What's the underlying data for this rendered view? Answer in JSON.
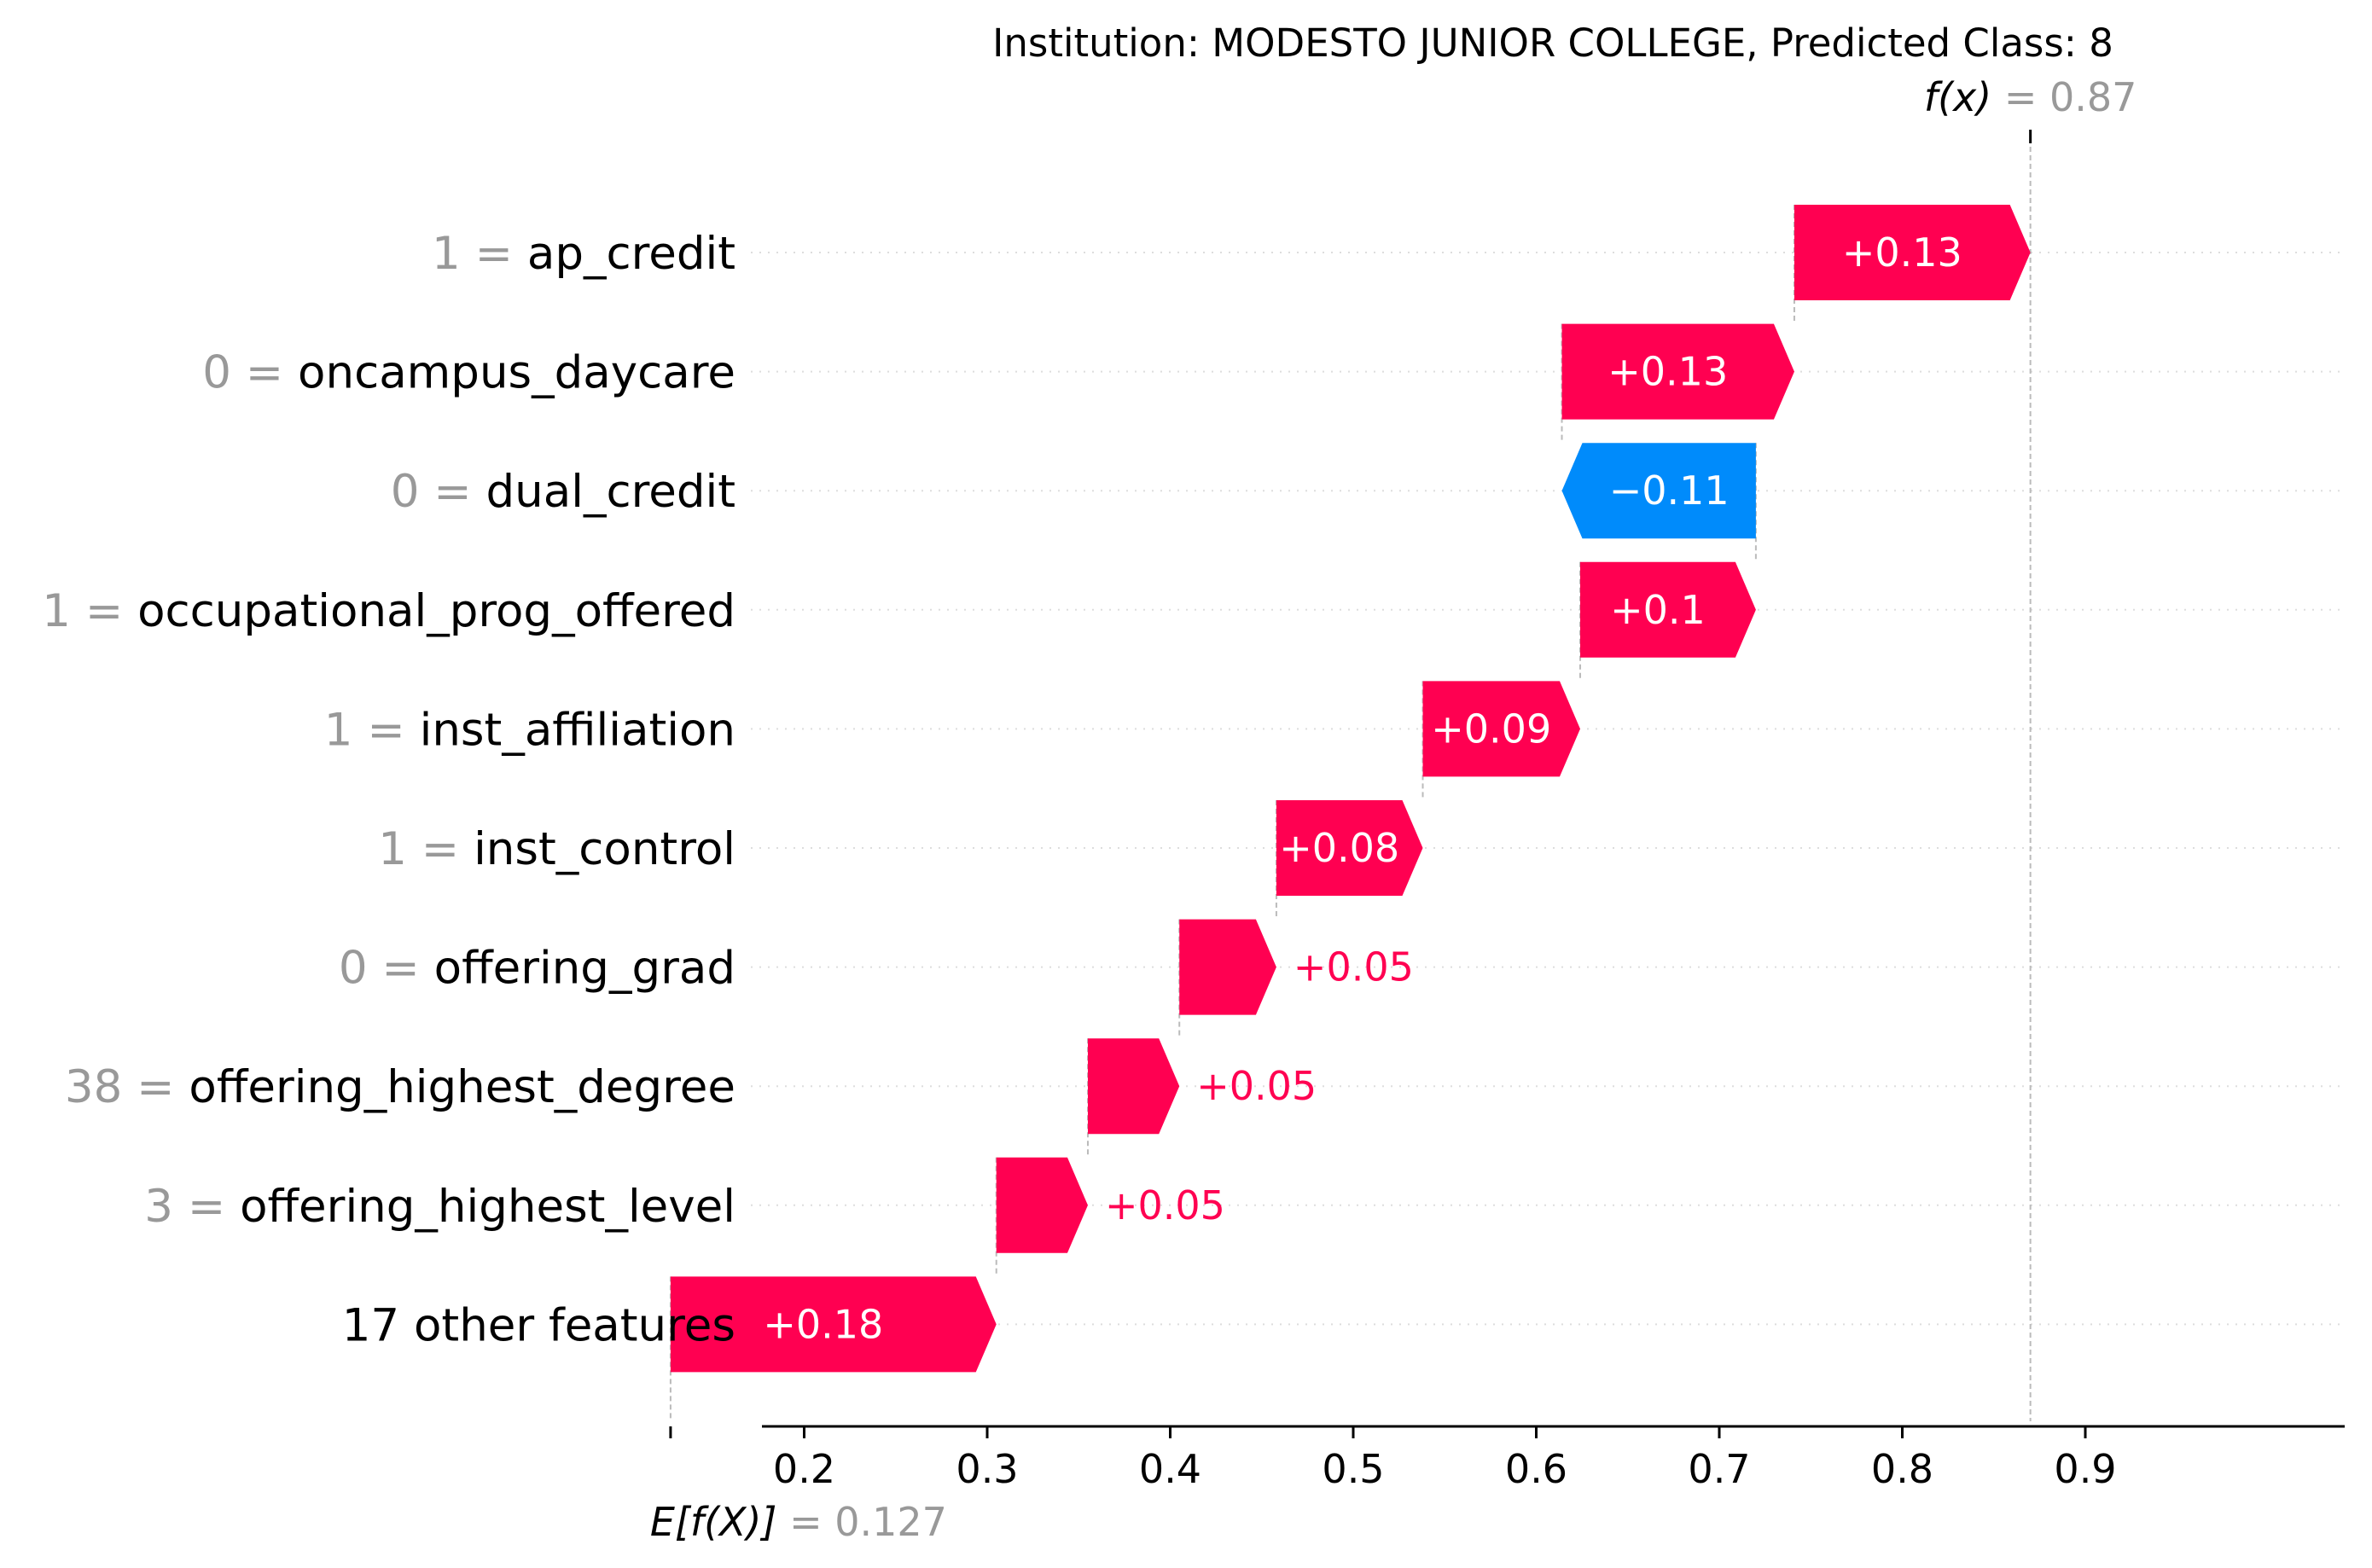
{
  "chart_data": {
    "type": "waterfall",
    "title": "Institution: MODESTO JUNIOR COLLEGE, Predicted Class: 8",
    "base_value": 0.127,
    "base_value_label": "0.127",
    "base_value_symbol": "E[f(X)]",
    "output_value": 0.87,
    "output_value_label": "0.87",
    "output_value_symbol": "f(x)",
    "x_ticks": [
      0.2,
      0.3,
      0.4,
      0.5,
      0.6,
      0.7,
      0.8,
      0.9
    ],
    "x_tick_labels": [
      "0.2",
      "0.3",
      "0.4",
      "0.5",
      "0.6",
      "0.7",
      "0.8",
      "0.9"
    ],
    "xlim": [
      0.12,
      0.99
    ],
    "features": [
      {
        "value": "1",
        "name": "ap_credit",
        "start": 0.741,
        "end": 0.87,
        "label": "+0.13"
      },
      {
        "value": "0",
        "name": "oncampus_daycare",
        "start": 0.614,
        "end": 0.741,
        "label": "+0.13"
      },
      {
        "value": "0",
        "name": "dual_credit",
        "start": 0.72,
        "end": 0.614,
        "label": "−0.11"
      },
      {
        "value": "1",
        "name": "occupational_prog_offered",
        "start": 0.624,
        "end": 0.72,
        "label": "+0.1"
      },
      {
        "value": "1",
        "name": "inst_affiliation",
        "start": 0.538,
        "end": 0.624,
        "label": "+0.09"
      },
      {
        "value": "1",
        "name": "inst_control",
        "start": 0.458,
        "end": 0.538,
        "label": "+0.08"
      },
      {
        "value": "0",
        "name": "offering_grad",
        "start": 0.405,
        "end": 0.458,
        "label": "+0.05"
      },
      {
        "value": "38",
        "name": "offering_highest_degree",
        "start": 0.355,
        "end": 0.405,
        "label": "+0.05"
      },
      {
        "value": "3",
        "name": "offering_highest_level",
        "start": 0.305,
        "end": 0.355,
        "label": "+0.05"
      },
      {
        "value": "",
        "name": "17 other features",
        "start": 0.127,
        "end": 0.305,
        "label": "+0.18"
      }
    ],
    "colors": {
      "positive": "#ff0051",
      "negative": "#008bfb",
      "muted_text": "#999999",
      "guide_line": "#bbbbbb",
      "grid_line": "#dddddd"
    }
  }
}
